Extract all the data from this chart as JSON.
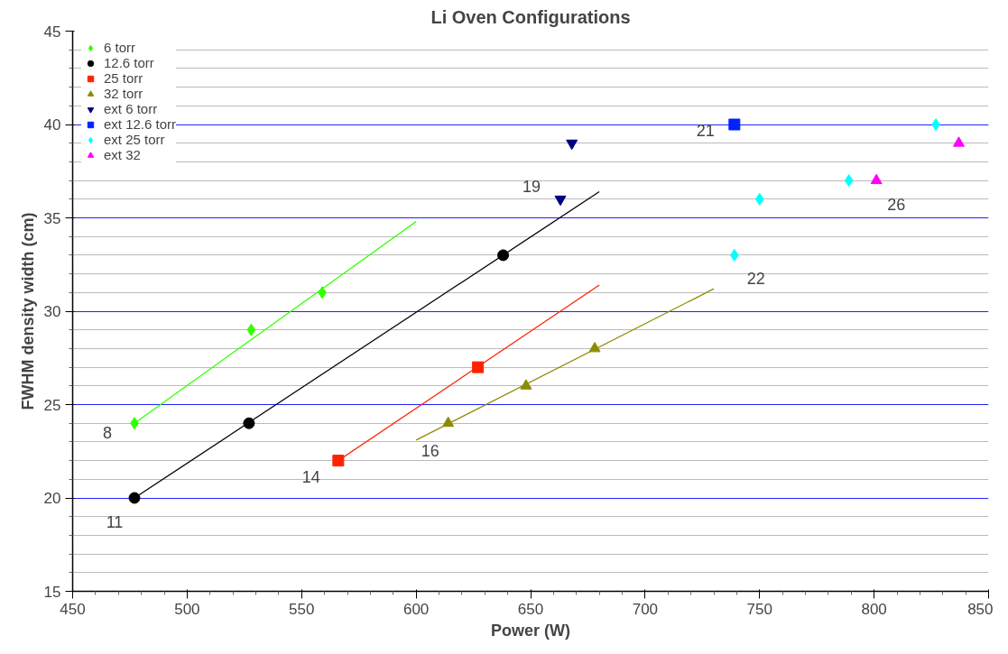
{
  "chart_data": {
    "type": "scatter",
    "title": "Li Oven Configurations",
    "xlabel": "Power (W)",
    "ylabel": "FWHM density width (cm)",
    "xlim": [
      450,
      850
    ],
    "xticks": [
      450,
      500,
      550,
      600,
      650,
      700,
      750,
      800,
      850
    ],
    "ylim": [
      15,
      45
    ],
    "yticks": [
      15,
      20,
      25,
      30,
      35,
      40,
      45
    ],
    "grid": true,
    "legend": "top left",
    "series": [
      {
        "name": "6 torr",
        "color": "#33ff00",
        "marker": "diamond",
        "x": [
          477,
          528,
          559
        ],
        "values": [
          24,
          29,
          31
        ]
      },
      {
        "name": "12.6 torr",
        "color": "#000000",
        "marker": "circle",
        "x": [
          477,
          527,
          638
        ],
        "values": [
          20,
          24,
          33
        ]
      },
      {
        "name": "25 torr",
        "color": "#ff2200",
        "marker": "square",
        "x": [
          566,
          627
        ],
        "values": [
          22,
          27
        ]
      },
      {
        "name": "32 torr",
        "color": "#8c8c00",
        "marker": "triangle",
        "x": [
          614,
          648,
          678
        ],
        "values": [
          24,
          26,
          28
        ]
      },
      {
        "name": "ext 6 torr",
        "color": "#000080",
        "marker": "triangle_down",
        "x": [
          663,
          668
        ],
        "values": [
          36,
          39
        ]
      },
      {
        "name": "ext 12.6 torr",
        "color": "#0022ff",
        "marker": "square",
        "x": [
          739
        ],
        "values": [
          40
        ]
      },
      {
        "name": "ext 25 torr",
        "color": "#00ffff",
        "marker": "diamond",
        "x": [
          739,
          750,
          789,
          827
        ],
        "values": [
          33,
          36,
          37,
          40
        ]
      },
      {
        "name": "ext 32",
        "color": "#ff00ff",
        "marker": "triangle",
        "x": [
          801,
          837
        ],
        "values": [
          37,
          39
        ]
      },
      {
        "type": "line",
        "color": "#33ff00",
        "x": [
          477,
          600
        ],
        "values": [
          24,
          34.8
        ]
      },
      {
        "type": "line",
        "color": "#000000",
        "x": [
          477,
          680
        ],
        "values": [
          20,
          36.4
        ]
      },
      {
        "type": "line",
        "color": "#ff2200",
        "x": [
          566,
          680
        ],
        "values": [
          22,
          31.4
        ]
      },
      {
        "type": "line",
        "color": "#8c8c00",
        "x": [
          600,
          730
        ],
        "values": [
          23.1,
          31.2
        ]
      }
    ],
    "annotations": [
      {
        "text": "8",
        "x": 477,
        "y": 24
      },
      {
        "text": "11",
        "x": 477,
        "y": 20
      },
      {
        "text": "14",
        "x": 566,
        "y": 22
      },
      {
        "text": "16",
        "x": 614,
        "y": 24
      },
      {
        "text": "19",
        "x": 663,
        "y": 36
      },
      {
        "text": "21",
        "x": 739,
        "y": 40
      },
      {
        "text": "22",
        "x": 739,
        "y": 33
      },
      {
        "text": "26",
        "x": 801,
        "y": 37
      }
    ]
  }
}
